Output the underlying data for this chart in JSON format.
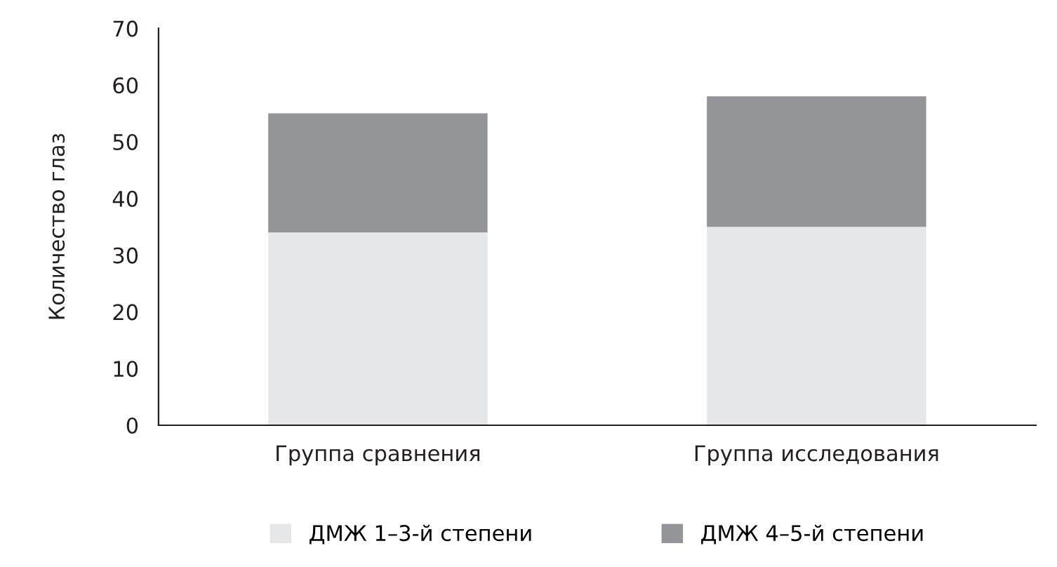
{
  "chart_data": {
    "type": "bar",
    "stacked": true,
    "ylabel": "Количество глаз",
    "categories": [
      "Группа сравнения",
      "Группа исследования"
    ],
    "series": [
      {
        "name": "ДМЖ 1–3-й степени",
        "color": "#e6e7e8",
        "values": [
          34,
          35
        ]
      },
      {
        "name": "ДМЖ 4–5-й степени",
        "color": "#939598",
        "values": [
          21,
          23
        ]
      }
    ],
    "ylim": [
      0,
      70
    ],
    "yticks": [
      0,
      10,
      20,
      30,
      40,
      50,
      60,
      70
    ],
    "grid": false,
    "legend": "bottom"
  }
}
